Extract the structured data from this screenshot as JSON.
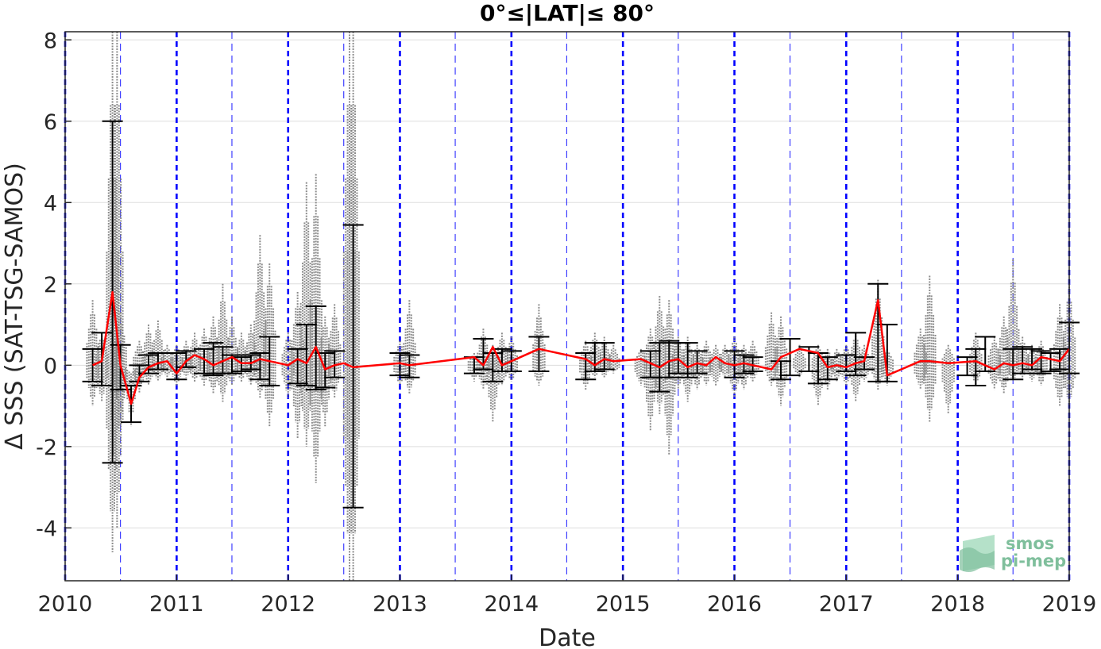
{
  "chart_data": {
    "type": "scatter",
    "title": "0°≤|LAT|≤ 80°",
    "xlabel": "Date",
    "ylabel": "Δ SSS (SAT-TSG-SAMOS)",
    "xlim": [
      "2010-01-01",
      "2019-01-01"
    ],
    "ylim": [
      -5.3,
      8.2
    ],
    "x_ticks": [
      "2010",
      "2011",
      "2012",
      "2013",
      "2014",
      "2015",
      "2016",
      "2017",
      "2018",
      "2019"
    ],
    "y_ticks": [
      -4,
      -2,
      0,
      2,
      4,
      6,
      8
    ],
    "grid": "horizontal",
    "year_lines_color": "#0000ff",
    "year_lines": [
      "2010-01-01",
      "2011-01-01",
      "2012-01-01",
      "2013-01-01",
      "2014-01-01",
      "2015-01-01",
      "2016-01-01",
      "2017-01-01",
      "2018-01-01",
      "2019-01-01"
    ],
    "midyear_lines": [
      "2010-07-01",
      "2011-07-01",
      "2012-07-01",
      "2013-07-01",
      "2014-07-01",
      "2015-07-01",
      "2016-07-01",
      "2017-07-01",
      "2018-07-01"
    ],
    "series": [
      {
        "color": "#ff0000",
        "style": "line",
        "x": [
          "2010-04-01",
          "2010-05-01",
          "2010-06-05",
          "2010-07-01",
          "2010-08-05",
          "2010-09-01",
          "2010-10-01",
          "2010-11-01",
          "2010-12-01",
          "2011-01-01",
          "2011-02-01",
          "2011-03-01",
          "2011-04-01",
          "2011-05-01",
          "2011-06-01",
          "2011-07-01",
          "2011-08-01",
          "2011-09-01",
          "2011-10-01",
          "2011-11-01",
          "2012-01-01",
          "2012-02-01",
          "2012-03-01",
          "2012-04-01",
          "2012-05-01",
          "2012-06-01",
          "2012-07-01",
          "2012-08-01",
          "2013-01-01",
          "2013-02-01",
          "2013-09-01",
          "2013-10-01",
          "2013-11-01",
          "2013-12-01",
          "2014-01-01",
          "2014-04-01",
          "2014-09-01",
          "2014-10-01",
          "2014-11-01",
          "2014-12-01",
          "2015-03-01",
          "2015-04-01",
          "2015-05-01",
          "2015-06-01",
          "2015-07-01",
          "2015-08-01",
          "2015-09-01",
          "2015-10-01",
          "2015-11-01",
          "2015-12-01",
          "2016-01-01",
          "2016-02-01",
          "2016-03-01",
          "2016-05-01",
          "2016-06-01",
          "2016-08-01",
          "2016-10-01",
          "2016-11-01",
          "2016-12-01",
          "2017-01-01",
          "2017-02-01",
          "2017-03-01",
          "2017-04-15",
          "2017-05-15",
          "2017-09-01",
          "2017-10-01",
          "2017-12-01",
          "2018-03-01",
          "2018-05-01",
          "2018-06-01",
          "2018-07-01",
          "2018-08-01",
          "2018-09-01",
          "2018-10-01",
          "2018-12-01",
          "2019-01-01"
        ],
        "y": [
          0.0,
          0.1,
          1.8,
          0.0,
          -0.95,
          -0.3,
          -0.05,
          0.05,
          0.1,
          -0.2,
          0.1,
          0.25,
          0.15,
          0.0,
          0.1,
          0.2,
          0.05,
          0.05,
          0.15,
          0.1,
          0.0,
          0.15,
          0.05,
          0.45,
          -0.1,
          0.0,
          0.05,
          -0.05,
          0.05,
          0.0,
          0.2,
          0.0,
          0.45,
          0.0,
          0.1,
          0.4,
          0.15,
          0.0,
          0.15,
          0.1,
          0.15,
          0.05,
          -0.05,
          0.1,
          0.15,
          -0.05,
          0.05,
          0.0,
          0.2,
          0.05,
          0.0,
          0.05,
          0.0,
          -0.1,
          0.2,
          0.4,
          0.3,
          -0.05,
          0.0,
          -0.05,
          0.05,
          0.1,
          1.6,
          -0.25,
          0.1,
          0.1,
          0.05,
          0.1,
          -0.1,
          0.05,
          0.0,
          0.05,
          0.0,
          0.2,
          0.1,
          0.4
        ]
      },
      {
        "color": "#000000",
        "style": "errorbar",
        "x": [
          "2010-04-01",
          "2010-05-01",
          "2010-06-05",
          "2010-07-01",
          "2010-08-05",
          "2010-09-01",
          "2010-10-01",
          "2010-11-01",
          "2011-01-01",
          "2011-02-01",
          "2011-04-01",
          "2011-05-01",
          "2011-06-01",
          "2011-07-01",
          "2011-08-01",
          "2011-09-01",
          "2011-10-01",
          "2011-11-01",
          "2012-02-01",
          "2012-03-01",
          "2012-04-01",
          "2012-05-01",
          "2012-06-01",
          "2012-08-01",
          "2013-01-01",
          "2013-02-01",
          "2013-09-01",
          "2013-10-01",
          "2013-11-01",
          "2013-12-01",
          "2014-01-01",
          "2014-04-01",
          "2014-09-01",
          "2014-10-01",
          "2014-11-01",
          "2015-04-01",
          "2015-05-01",
          "2015-06-01",
          "2015-07-01",
          "2015-08-01",
          "2015-09-01",
          "2016-01-01",
          "2016-02-01",
          "2016-03-01",
          "2016-06-01",
          "2016-07-01",
          "2016-09-01",
          "2016-10-01",
          "2016-11-01",
          "2017-01-01",
          "2017-02-01",
          "2017-03-01",
          "2017-04-15",
          "2017-05-15",
          "2018-02-01",
          "2018-03-01",
          "2018-04-01",
          "2018-07-01",
          "2018-08-01",
          "2018-09-01",
          "2018-10-01",
          "2018-11-01",
          "2018-12-01",
          "2019-01-01"
        ],
        "low": [
          -0.4,
          -0.5,
          -2.4,
          -0.6,
          -1.4,
          -0.4,
          -0.2,
          -0.1,
          -0.35,
          -0.05,
          -0.2,
          -0.25,
          -0.2,
          -0.2,
          -0.15,
          -0.1,
          -0.35,
          -0.5,
          -0.45,
          -0.5,
          -0.6,
          -0.55,
          -0.3,
          -3.5,
          -0.25,
          -0.3,
          -0.2,
          -0.1,
          -0.4,
          -0.15,
          -0.15,
          -0.15,
          -0.35,
          -0.15,
          -0.1,
          -0.3,
          -0.65,
          -0.3,
          -0.2,
          -0.3,
          -0.2,
          -0.3,
          -0.2,
          -0.15,
          -0.35,
          -0.25,
          -0.15,
          -0.45,
          -0.35,
          -0.15,
          -0.25,
          -0.1,
          -0.4,
          -0.4,
          -0.25,
          -0.5,
          -0.15,
          -0.35,
          -0.2,
          -0.1,
          -0.2,
          -0.15,
          -0.1,
          -0.2
        ],
        "high": [
          0.4,
          0.8,
          6.0,
          0.5,
          -0.5,
          0.0,
          0.25,
          0.3,
          0.3,
          0.35,
          0.4,
          0.55,
          0.45,
          0.25,
          0.2,
          0.25,
          0.3,
          0.7,
          0.4,
          1.0,
          1.45,
          0.3,
          0.35,
          3.45,
          0.3,
          0.25,
          0.2,
          0.65,
          0.3,
          0.4,
          0.35,
          0.7,
          0.3,
          0.55,
          0.55,
          0.35,
          0.55,
          0.6,
          0.55,
          0.55,
          0.35,
          0.35,
          0.25,
          0.2,
          0.1,
          0.65,
          0.45,
          0.3,
          0.2,
          0.25,
          0.8,
          0.2,
          2.0,
          1.0,
          0.2,
          0.4,
          0.7,
          0.4,
          0.45,
          0.4,
          0.35,
          0.3,
          0.4,
          1.05
        ]
      },
      {
        "color": "#808080",
        "style": "point-cloud",
        "x": [
          "2010-04-01",
          "2010-05-01",
          "2010-06-05",
          "2010-06-20",
          "2010-07-01",
          "2010-08-05",
          "2010-09-01",
          "2010-10-01",
          "2010-11-01",
          "2010-12-01",
          "2011-01-01",
          "2011-02-01",
          "2011-03-01",
          "2011-04-01",
          "2011-05-01",
          "2011-06-01",
          "2011-07-01",
          "2011-08-01",
          "2011-09-01",
          "2011-10-01",
          "2011-11-01",
          "2012-01-01",
          "2012-02-01",
          "2012-03-01",
          "2012-04-01",
          "2012-05-01",
          "2012-06-01",
          "2012-07-20",
          "2012-08-01",
          "2013-01-01",
          "2013-02-01",
          "2013-09-01",
          "2013-10-01",
          "2013-11-01",
          "2013-12-01",
          "2014-01-01",
          "2014-04-01",
          "2014-09-01",
          "2014-10-01",
          "2014-11-01",
          "2014-12-01",
          "2015-03-01",
          "2015-04-01",
          "2015-05-01",
          "2015-06-01",
          "2015-07-01",
          "2015-08-01",
          "2015-09-01",
          "2015-10-01",
          "2015-11-01",
          "2015-12-01",
          "2016-01-01",
          "2016-02-01",
          "2016-03-01",
          "2016-05-01",
          "2016-06-01",
          "2016-08-01",
          "2016-10-01",
          "2016-11-01",
          "2016-12-01",
          "2017-01-01",
          "2017-02-01",
          "2017-03-01",
          "2017-04-15",
          "2017-05-15",
          "2017-09-01",
          "2017-10-01",
          "2017-12-01",
          "2018-03-01",
          "2018-05-01",
          "2018-06-01",
          "2018-07-01",
          "2018-08-01",
          "2018-09-01",
          "2018-10-01",
          "2018-12-01",
          "2019-01-01"
        ],
        "low": [
          -1.0,
          -0.9,
          -4.6,
          -4.0,
          -1.5,
          -1.5,
          -0.7,
          -0.5,
          -0.4,
          -0.3,
          -0.5,
          -0.3,
          -0.4,
          -0.5,
          -0.7,
          -0.9,
          -0.5,
          -0.4,
          -0.5,
          -0.8,
          -1.5,
          -0.8,
          -1.8,
          -2.0,
          -2.9,
          -1.5,
          -0.8,
          -5.3,
          -5.3,
          -0.5,
          -0.7,
          -0.4,
          -0.6,
          -1.4,
          -0.5,
          -0.4,
          -0.5,
          -0.6,
          -0.3,
          -0.3,
          -0.2,
          -0.5,
          -1.6,
          -1.2,
          -2.2,
          -0.6,
          -0.9,
          -0.6,
          -0.5,
          -0.5,
          -0.3,
          -0.8,
          -0.6,
          -0.4,
          -0.5,
          -1.0,
          -0.3,
          -1.0,
          -0.6,
          -0.4,
          -0.5,
          -0.9,
          -0.4,
          -0.6,
          -0.5,
          -0.6,
          -1.4,
          -1.2,
          -0.5,
          -0.6,
          -0.7,
          -0.4,
          -0.3,
          -0.4,
          -0.5,
          -1.0,
          -1.0
        ],
        "high": [
          1.6,
          0.8,
          8.2,
          8.2,
          1.3,
          -0.2,
          0.6,
          1.0,
          1.1,
          0.5,
          0.5,
          0.6,
          0.8,
          0.9,
          1.2,
          2.0,
          1.2,
          0.8,
          1.0,
          3.2,
          2.5,
          0.8,
          1.8,
          4.5,
          4.7,
          1.2,
          1.5,
          8.2,
          8.2,
          0.6,
          1.6,
          0.3,
          0.9,
          0.5,
          0.8,
          0.7,
          1.5,
          0.6,
          0.8,
          0.7,
          0.5,
          0.4,
          0.9,
          1.7,
          1.6,
          0.7,
          0.7,
          0.5,
          0.6,
          0.5,
          0.5,
          0.7,
          0.5,
          0.6,
          1.3,
          1.2,
          0.5,
          0.5,
          0.4,
          0.4,
          0.5,
          0.8,
          0.5,
          2.1,
          0.4,
          0.9,
          2.2,
          0.5,
          0.8,
          0.7,
          1.2,
          2.6,
          0.7,
          0.5,
          0.6,
          1.5,
          2.0
        ]
      }
    ],
    "logo": {
      "line1": "smos",
      "line2": "pi-mep",
      "color": "#7fbf9c"
    }
  }
}
